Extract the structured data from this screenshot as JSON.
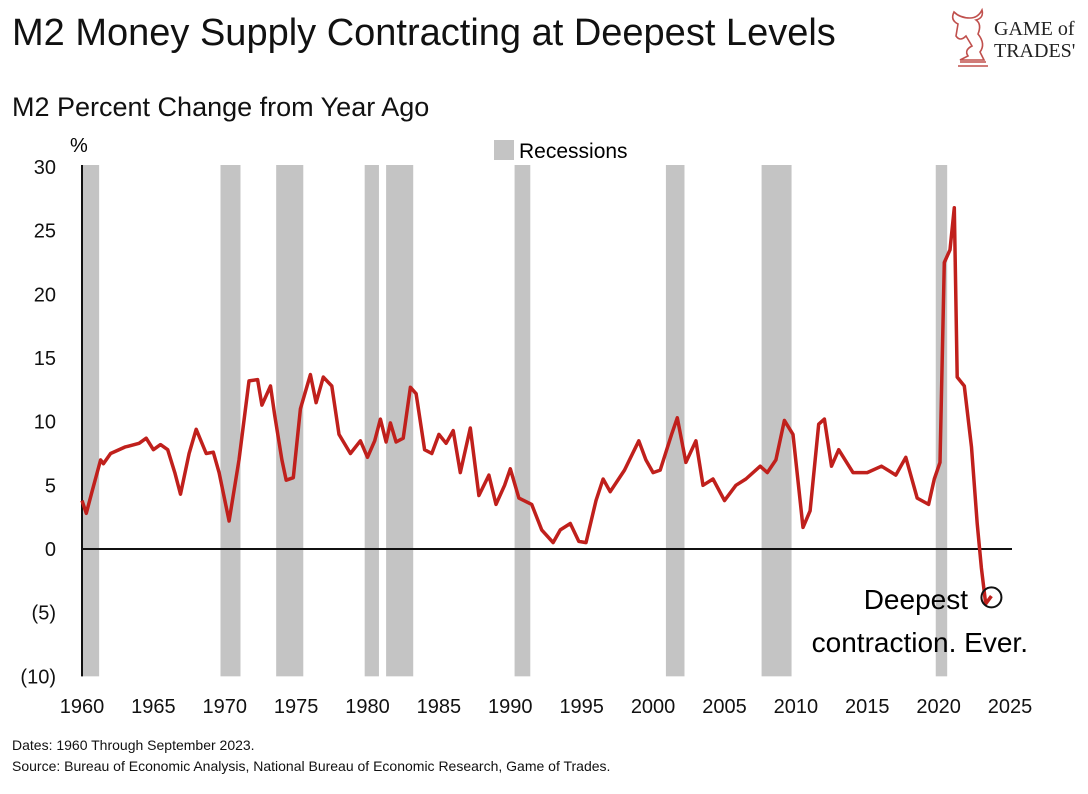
{
  "title": "M2 Money Supply Contracting at Deepest Levels",
  "subtitle": "M2 Percent Change from Year Ago",
  "footnotes": [
    "Dates: 1960 Through September 2023.",
    "Source: Bureau of Economic Analysis, National Bureau of Economic Research, Game of Trades."
  ],
  "logo": {
    "text_line1": "GAME of",
    "text_line2": "TRADES'",
    "color": "#c0504d"
  },
  "chart_data": {
    "type": "line",
    "title": "M2 Percent Change from Year Ago",
    "ylabel": "%",
    "xlim": [
      1960,
      2025
    ],
    "ylim": [
      -10,
      30
    ],
    "x_ticks": [
      1960,
      1965,
      1970,
      1975,
      1980,
      1985,
      1990,
      1995,
      2000,
      2005,
      2010,
      2015,
      2020,
      2025
    ],
    "y_ticks": [
      {
        "v": 30,
        "label": "30"
      },
      {
        "v": 25,
        "label": "25"
      },
      {
        "v": 20,
        "label": "20"
      },
      {
        "v": 15,
        "label": "15"
      },
      {
        "v": 10,
        "label": "10"
      },
      {
        "v": 5,
        "label": "5"
      },
      {
        "v": 0,
        "label": "0"
      },
      {
        "v": -5,
        "label": "(5)"
      },
      {
        "v": -10,
        "label": "(10)"
      }
    ],
    "grid": false,
    "legend": {
      "label": "Recessions",
      "placement": "top-center"
    },
    "colors": {
      "line": "#c0201c",
      "recession": "#c4c4c4"
    },
    "recessions": [
      [
        1960.0,
        1961.2
      ],
      [
        1969.7,
        1971.1
      ],
      [
        1973.6,
        1975.5
      ],
      [
        1979.8,
        1980.8
      ],
      [
        1981.3,
        1983.2
      ],
      [
        1990.3,
        1991.4
      ],
      [
        2000.9,
        2002.2
      ],
      [
        2007.6,
        2009.7
      ],
      [
        2019.8,
        2020.6
      ]
    ],
    "series": [
      {
        "x": [
          1960,
          1960.3,
          1960.7,
          1961.3,
          1961.5,
          1962,
          1963,
          1964,
          1964.5,
          1965,
          1965.5,
          1966,
          1966.5,
          1966.9,
          1967.5,
          1968,
          1968.7,
          1969.2,
          1969.6,
          1970.3,
          1971,
          1971.7,
          1972.3,
          1972.6,
          1973.2,
          1973.5,
          1974,
          1974.3,
          1974.8,
          1975.3,
          1976,
          1976.4,
          1976.9,
          1977.5,
          1978,
          1978.8,
          1979.5,
          1980,
          1980.5,
          1980.9,
          1981.3,
          1981.6,
          1982,
          1982.5,
          1983,
          1983.4,
          1984,
          1984.5,
          1985,
          1985.5,
          1986,
          1986.5,
          1987.2,
          1987.8,
          1988.5,
          1989,
          1989.6,
          1990,
          1990.6,
          1991.5,
          1992.2,
          1993,
          1993.5,
          1994.2,
          1994.8,
          1995.3,
          1996,
          1996.5,
          1997,
          1998,
          1999,
          1999.5,
          2000,
          2000.5,
          2001.3,
          2001.7,
          2002.3,
          2003,
          2003.5,
          2004.2,
          2005,
          2005.8,
          2006.5,
          2007.5,
          2008,
          2008.6,
          2009.2,
          2009.8,
          2010.5,
          2011,
          2011.6,
          2012,
          2012.5,
          2013,
          2014,
          2015,
          2016,
          2017,
          2017.7,
          2018.5,
          2019.3,
          2019.7,
          2020.1,
          2020.4,
          2020.8,
          2021.1,
          2021.3,
          2021.8,
          2022.3,
          2022.7,
          2023.0,
          2023.3,
          2023.7
        ],
        "y": [
          3.8,
          2.8,
          4.5,
          7.0,
          6.7,
          7.5,
          8.0,
          8.3,
          8.7,
          7.8,
          8.2,
          7.8,
          6.0,
          4.3,
          7.5,
          9.4,
          7.5,
          7.6,
          6.0,
          2.2,
          7.0,
          13.2,
          13.3,
          11.3,
          12.8,
          10.5,
          7.0,
          5.4,
          5.6,
          11.0,
          13.7,
          11.5,
          13.5,
          12.8,
          9.0,
          7.5,
          8.5,
          7.2,
          8.5,
          10.2,
          8.4,
          9.9,
          8.4,
          8.7,
          12.7,
          12.2,
          7.8,
          7.5,
          9.0,
          8.3,
          9.3,
          6.0,
          9.5,
          4.2,
          5.8,
          3.5,
          5.0,
          6.3,
          4.0,
          3.5,
          1.5,
          0.5,
          1.5,
          2.0,
          0.6,
          0.5,
          3.8,
          5.5,
          4.5,
          6.2,
          8.5,
          7.0,
          6.0,
          6.2,
          9.0,
          10.3,
          6.8,
          8.5,
          5.0,
          5.5,
          3.8,
          5.0,
          5.5,
          6.5,
          6.0,
          7.0,
          10.1,
          9.0,
          1.7,
          3.0,
          9.8,
          10.2,
          6.5,
          7.8,
          6.0,
          6.0,
          6.5,
          5.8,
          7.2,
          4.0,
          3.5,
          5.5,
          6.8,
          22.5,
          23.5,
          26.8,
          13.5,
          12.8,
          8.0,
          2.0,
          -1.5,
          -4.3,
          -3.7
        ]
      }
    ],
    "annotations": [
      {
        "x": 2023.7,
        "y": -3.8,
        "text_line1": "Deepest",
        "text_line2": "contraction. Ever."
      }
    ]
  }
}
